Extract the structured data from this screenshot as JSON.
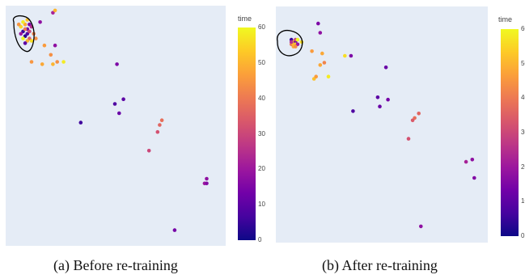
{
  "chart_data": [
    {
      "type": "scatter",
      "caption": "(a) Before re-training",
      "colorbar": {
        "title": "time",
        "range": [
          0,
          60
        ],
        "ticks": [
          0,
          10,
          20,
          30,
          40,
          50,
          60
        ],
        "colorscale": [
          "#0d0887",
          "#46039f",
          "#7201a8",
          "#9c179e",
          "#bd3786",
          "#d8576b",
          "#ed7953",
          "#fb9f3a",
          "#fdca26",
          "#f0f921"
        ]
      },
      "highlight": "outlined dense cluster of points at top-left",
      "points": [
        {
          "x": 0.07,
          "y": 0.9,
          "t": 5
        },
        {
          "x": 0.08,
          "y": 0.88,
          "t": 3
        },
        {
          "x": 0.09,
          "y": 0.89,
          "t": 8
        },
        {
          "x": 0.06,
          "y": 0.92,
          "t": 55
        },
        {
          "x": 0.08,
          "y": 0.93,
          "t": 48
        },
        {
          "x": 0.07,
          "y": 0.94,
          "t": 58
        },
        {
          "x": 0.09,
          "y": 0.91,
          "t": 12
        },
        {
          "x": 0.1,
          "y": 0.87,
          "t": 35
        },
        {
          "x": 0.09,
          "y": 0.86,
          "t": 50
        },
        {
          "x": 0.06,
          "y": 0.89,
          "t": 20
        },
        {
          "x": 0.08,
          "y": 0.91,
          "t": 40
        },
        {
          "x": 0.1,
          "y": 0.9,
          "t": 30
        },
        {
          "x": 0.07,
          "y": 0.87,
          "t": 60
        },
        {
          "x": 0.05,
          "y": 0.93,
          "t": 45
        },
        {
          "x": 0.1,
          "y": 0.93,
          "t": 15
        },
        {
          "x": 0.11,
          "y": 0.92,
          "t": 25
        },
        {
          "x": 0.09,
          "y": 0.95,
          "t": 52
        },
        {
          "x": 0.08,
          "y": 0.85,
          "t": 10
        },
        {
          "x": 0.12,
          "y": 0.89,
          "t": 42
        },
        {
          "x": 0.11,
          "y": 0.86,
          "t": 56
        },
        {
          "x": 0.15,
          "y": 0.94,
          "t": 18
        },
        {
          "x": 0.13,
          "y": 0.87,
          "t": 44
        },
        {
          "x": 0.21,
          "y": 0.98,
          "t": 22
        },
        {
          "x": 0.22,
          "y": 0.99,
          "t": 50
        },
        {
          "x": 0.17,
          "y": 0.84,
          "t": 46
        },
        {
          "x": 0.22,
          "y": 0.84,
          "t": 18
        },
        {
          "x": 0.2,
          "y": 0.8,
          "t": 44
        },
        {
          "x": 0.11,
          "y": 0.77,
          "t": 45
        },
        {
          "x": 0.16,
          "y": 0.76,
          "t": 48
        },
        {
          "x": 0.21,
          "y": 0.76,
          "t": 50
        },
        {
          "x": 0.23,
          "y": 0.77,
          "t": 44
        },
        {
          "x": 0.26,
          "y": 0.77,
          "t": 58
        },
        {
          "x": 0.51,
          "y": 0.76,
          "t": 15
        },
        {
          "x": 0.54,
          "y": 0.61,
          "t": 10
        },
        {
          "x": 0.5,
          "y": 0.59,
          "t": 8
        },
        {
          "x": 0.52,
          "y": 0.55,
          "t": 12
        },
        {
          "x": 0.34,
          "y": 0.51,
          "t": 6
        },
        {
          "x": 0.72,
          "y": 0.52,
          "t": 38
        },
        {
          "x": 0.71,
          "y": 0.5,
          "t": 36
        },
        {
          "x": 0.7,
          "y": 0.47,
          "t": 32
        },
        {
          "x": 0.66,
          "y": 0.39,
          "t": 30
        },
        {
          "x": 0.93,
          "y": 0.27,
          "t": 18
        },
        {
          "x": 0.92,
          "y": 0.25,
          "t": 20
        },
        {
          "x": 0.93,
          "y": 0.25,
          "t": 16
        },
        {
          "x": 0.78,
          "y": 0.05,
          "t": 14
        }
      ]
    },
    {
      "type": "scatter",
      "caption": "(b) After re-training",
      "colorbar": {
        "title": "time",
        "range": [
          0,
          60
        ],
        "ticks": [
          0,
          10,
          20,
          30,
          40,
          50,
          60
        ],
        "colorscale": [
          "#0d0887",
          "#46039f",
          "#7201a8",
          "#9c179e",
          "#bd3786",
          "#d8576b",
          "#ed7953",
          "#fb9f3a",
          "#fdca26",
          "#f0f921"
        ]
      },
      "highlight": "outlined dense cluster of points at top-left",
      "points": [
        {
          "x": 0.06,
          "y": 0.87,
          "t": 5
        },
        {
          "x": 0.07,
          "y": 0.86,
          "t": 55
        },
        {
          "x": 0.08,
          "y": 0.86,
          "t": 10
        },
        {
          "x": 0.07,
          "y": 0.84,
          "t": 48
        },
        {
          "x": 0.08,
          "y": 0.85,
          "t": 58
        },
        {
          "x": 0.06,
          "y": 0.85,
          "t": 40
        },
        {
          "x": 0.09,
          "y": 0.85,
          "t": 20
        },
        {
          "x": 0.08,
          "y": 0.87,
          "t": 30
        },
        {
          "x": 0.07,
          "y": 0.85,
          "t": 50
        },
        {
          "x": 0.09,
          "y": 0.87,
          "t": 60
        },
        {
          "x": 0.06,
          "y": 0.86,
          "t": 25
        },
        {
          "x": 0.08,
          "y": 0.84,
          "t": 44
        },
        {
          "x": 0.11,
          "y": 0.86,
          "t": 56
        },
        {
          "x": 0.19,
          "y": 0.94,
          "t": 15
        },
        {
          "x": 0.2,
          "y": 0.9,
          "t": 18
        },
        {
          "x": 0.16,
          "y": 0.82,
          "t": 46
        },
        {
          "x": 0.21,
          "y": 0.81,
          "t": 48
        },
        {
          "x": 0.32,
          "y": 0.8,
          "t": 56
        },
        {
          "x": 0.35,
          "y": 0.8,
          "t": 15
        },
        {
          "x": 0.2,
          "y": 0.76,
          "t": 48
        },
        {
          "x": 0.22,
          "y": 0.77,
          "t": 42
        },
        {
          "x": 0.17,
          "y": 0.7,
          "t": 52
        },
        {
          "x": 0.18,
          "y": 0.71,
          "t": 46
        },
        {
          "x": 0.24,
          "y": 0.71,
          "t": 58
        },
        {
          "x": 0.52,
          "y": 0.75,
          "t": 12
        },
        {
          "x": 0.48,
          "y": 0.62,
          "t": 10
        },
        {
          "x": 0.53,
          "y": 0.61,
          "t": 14
        },
        {
          "x": 0.49,
          "y": 0.58,
          "t": 12
        },
        {
          "x": 0.36,
          "y": 0.56,
          "t": 8
        },
        {
          "x": 0.68,
          "y": 0.55,
          "t": 36
        },
        {
          "x": 0.66,
          "y": 0.53,
          "t": 38
        },
        {
          "x": 0.65,
          "y": 0.52,
          "t": 34
        },
        {
          "x": 0.63,
          "y": 0.44,
          "t": 32
        },
        {
          "x": 0.94,
          "y": 0.35,
          "t": 18
        },
        {
          "x": 0.91,
          "y": 0.34,
          "t": 22
        },
        {
          "x": 0.95,
          "y": 0.27,
          "t": 16
        },
        {
          "x": 0.69,
          "y": 0.06,
          "t": 18
        }
      ]
    }
  ]
}
